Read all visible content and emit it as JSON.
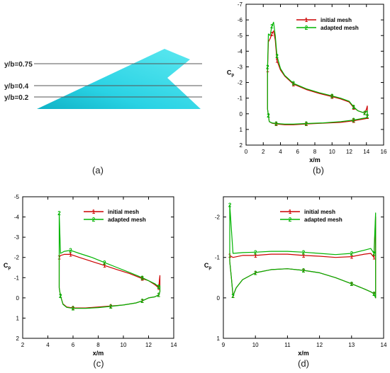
{
  "panel_a": {
    "caption": "(a)",
    "stations": [
      "y/b=0.75",
      "y/b=0.4",
      "y/b=0.2"
    ]
  },
  "colors": {
    "initial": "#cc0000",
    "adapted": "#00b400",
    "wing": "#2ad6e6"
  },
  "chart_data": [
    {
      "type": "line",
      "caption": "(b)",
      "xlabel": "x/m",
      "ylabel": "Cp",
      "xlim": [
        0,
        16
      ],
      "ylim": [
        2,
        -7
      ],
      "xticks": [
        "0",
        "2",
        "4",
        "6",
        "8",
        "10",
        "12",
        "14",
        "16"
      ],
      "yticks": [
        "-7",
        "-6",
        "-5",
        "-4",
        "-3",
        "-2",
        "-1",
        "0",
        "1",
        "2"
      ],
      "legend": "top-right",
      "series": [
        {
          "name": "initial mesh",
          "marker": "1",
          "x": [
            2.5,
            2.5,
            2.6,
            2.8,
            3.0,
            3.2,
            3.4,
            3.6,
            4.0,
            4.5,
            5.5,
            7,
            8.5,
            10,
            11,
            12,
            12.5,
            13,
            13.5,
            13.8,
            14.0,
            14.1,
            14.1,
            14.0,
            13.5,
            12.5,
            11,
            9,
            7,
            5.5,
            4.5,
            3.5,
            3.0,
            2.7,
            2.6,
            2.5
          ],
          "y": [
            -0.3,
            -2.8,
            -4.6,
            -4.8,
            -5.1,
            -5.3,
            -4.7,
            -3.4,
            -2.8,
            -2.4,
            -1.9,
            -1.55,
            -1.3,
            -1.1,
            -0.95,
            -0.75,
            -0.4,
            -0.2,
            -0.1,
            -0.05,
            -0.3,
            -0.5,
            0.2,
            0.3,
            0.35,
            0.45,
            0.55,
            0.6,
            0.65,
            0.7,
            0.7,
            0.65,
            0.6,
            0.5,
            0.1,
            -0.3
          ]
        },
        {
          "name": "adapted mesh",
          "marker": "2",
          "x": [
            2.5,
            2.5,
            2.6,
            2.8,
            3.0,
            3.2,
            3.4,
            3.6,
            4.0,
            4.5,
            5.5,
            7,
            8.5,
            10,
            11,
            12,
            12.5,
            13,
            13.5,
            13.8,
            14.0,
            14.1,
            14.1,
            14.0,
            13.5,
            12.5,
            11,
            9,
            7,
            5.5,
            4.5,
            3.5,
            3.0,
            2.7,
            2.6,
            2.5
          ],
          "y": [
            -0.3,
            -3.0,
            -5.1,
            -5.0,
            -5.6,
            -5.85,
            -5.0,
            -3.7,
            -2.9,
            -2.45,
            -1.95,
            -1.6,
            -1.35,
            -1.15,
            -1.0,
            -0.8,
            -0.45,
            -0.2,
            -0.1,
            -0.05,
            -0.15,
            -0.2,
            0.15,
            0.25,
            0.3,
            0.4,
            0.5,
            0.58,
            0.62,
            0.66,
            0.66,
            0.62,
            0.58,
            0.5,
            0.1,
            -0.3
          ]
        }
      ]
    },
    {
      "type": "line",
      "caption": "(c)",
      "xlabel": "x/m",
      "ylabel": "Cp",
      "xlim": [
        2,
        14
      ],
      "ylim": [
        2,
        -5
      ],
      "xticks": [
        "2",
        "4",
        "6",
        "8",
        "10",
        "12",
        "14"
      ],
      "yticks": [
        "-5",
        "-4",
        "-3",
        "-2",
        "-1",
        "0",
        "1",
        "2"
      ],
      "legend": "top-right",
      "series": [
        {
          "name": "initial mesh",
          "marker": "1",
          "x": [
            4.9,
            4.9,
            5.0,
            5.3,
            5.8,
            6.5,
            7.5,
            8.5,
            9.5,
            10.5,
            11.5,
            12.0,
            12.5,
            12.8,
            12.9,
            12.9,
            12.8,
            12.5,
            12.0,
            11.5,
            11.0,
            10.0,
            9.0,
            8.0,
            7.0,
            6.0,
            5.5,
            5.2,
            5.0,
            4.9
          ],
          "y": [
            -0.5,
            -2.0,
            -2.1,
            -2.15,
            -2.15,
            -2.0,
            -1.8,
            -1.6,
            -1.4,
            -1.2,
            -0.95,
            -0.85,
            -0.65,
            -0.5,
            -1.1,
            -0.3,
            -0.15,
            -0.05,
            0.0,
            0.15,
            0.25,
            0.35,
            0.4,
            0.45,
            0.5,
            0.5,
            0.45,
            0.3,
            -0.1,
            -0.5
          ]
        },
        {
          "name": "adapted mesh",
          "marker": "2",
          "x": [
            4.9,
            4.9,
            5.0,
            5.3,
            5.8,
            6.5,
            7.5,
            8.5,
            9.5,
            10.5,
            11.5,
            12.0,
            12.5,
            12.8,
            12.9,
            12.9,
            12.8,
            12.5,
            12.0,
            11.5,
            11.0,
            10.0,
            9.0,
            8.0,
            7.0,
            6.0,
            5.5,
            5.2,
            5.0,
            4.9
          ],
          "y": [
            -0.5,
            -4.2,
            -2.2,
            -2.3,
            -2.35,
            -2.2,
            -2.0,
            -1.75,
            -1.5,
            -1.25,
            -1.0,
            -0.85,
            -0.7,
            -0.55,
            -0.6,
            -0.3,
            -0.15,
            -0.05,
            0.0,
            0.15,
            0.25,
            0.35,
            0.42,
            0.48,
            0.52,
            0.52,
            0.47,
            0.32,
            -0.1,
            -0.5
          ]
        }
      ]
    },
    {
      "type": "line",
      "caption": "(d)",
      "xlabel": "x/m",
      "ylabel": "Cp",
      "xlim": [
        9,
        14
      ],
      "ylim": [
        1,
        -2.5
      ],
      "xticks": [
        "9",
        "10",
        "11",
        "12",
        "13",
        "14"
      ],
      "yticks": [
        "-2",
        "-1",
        "0",
        "1"
      ],
      "legend": "top-right",
      "series": [
        {
          "name": "initial mesh",
          "marker": "1",
          "x": [
            9.2,
            9.2,
            9.3,
            9.6,
            10.0,
            10.5,
            11.0,
            11.5,
            12.0,
            12.5,
            13.0,
            13.4,
            13.6,
            13.7,
            13.75,
            13.75,
            13.7,
            13.6,
            13.4,
            13.0,
            12.5,
            12.0,
            11.5,
            11.0,
            10.5,
            10.0,
            9.6,
            9.4,
            9.3,
            9.25,
            9.2
          ],
          "y": [
            -0.9,
            -1.05,
            -1.0,
            -1.05,
            -1.05,
            -1.08,
            -1.08,
            -1.05,
            -1.03,
            -1.0,
            -1.02,
            -1.08,
            -1.1,
            -1.0,
            -2.0,
            0.0,
            -0.1,
            -0.15,
            -0.22,
            -0.35,
            -0.5,
            -0.62,
            -0.68,
            -0.72,
            -0.7,
            -0.62,
            -0.45,
            -0.25,
            -0.05,
            -0.5,
            -0.9
          ]
        },
        {
          "name": "adapted mesh",
          "marker": "2",
          "x": [
            9.2,
            9.2,
            9.3,
            9.6,
            10.0,
            10.5,
            11.0,
            11.5,
            12.0,
            12.5,
            13.0,
            13.4,
            13.6,
            13.7,
            13.75,
            13.75,
            13.7,
            13.6,
            13.4,
            13.0,
            12.5,
            12.0,
            11.5,
            11.0,
            10.5,
            10.0,
            9.6,
            9.4,
            9.3,
            9.25,
            9.2
          ],
          "y": [
            -0.9,
            -2.3,
            -1.1,
            -1.12,
            -1.13,
            -1.15,
            -1.15,
            -1.13,
            -1.1,
            -1.07,
            -1.1,
            -1.18,
            -1.22,
            -1.1,
            -2.1,
            0.0,
            -0.1,
            -0.15,
            -0.22,
            -0.35,
            -0.5,
            -0.62,
            -0.68,
            -0.72,
            -0.7,
            -0.62,
            -0.45,
            -0.25,
            -0.05,
            -0.5,
            -0.9
          ]
        }
      ]
    }
  ]
}
